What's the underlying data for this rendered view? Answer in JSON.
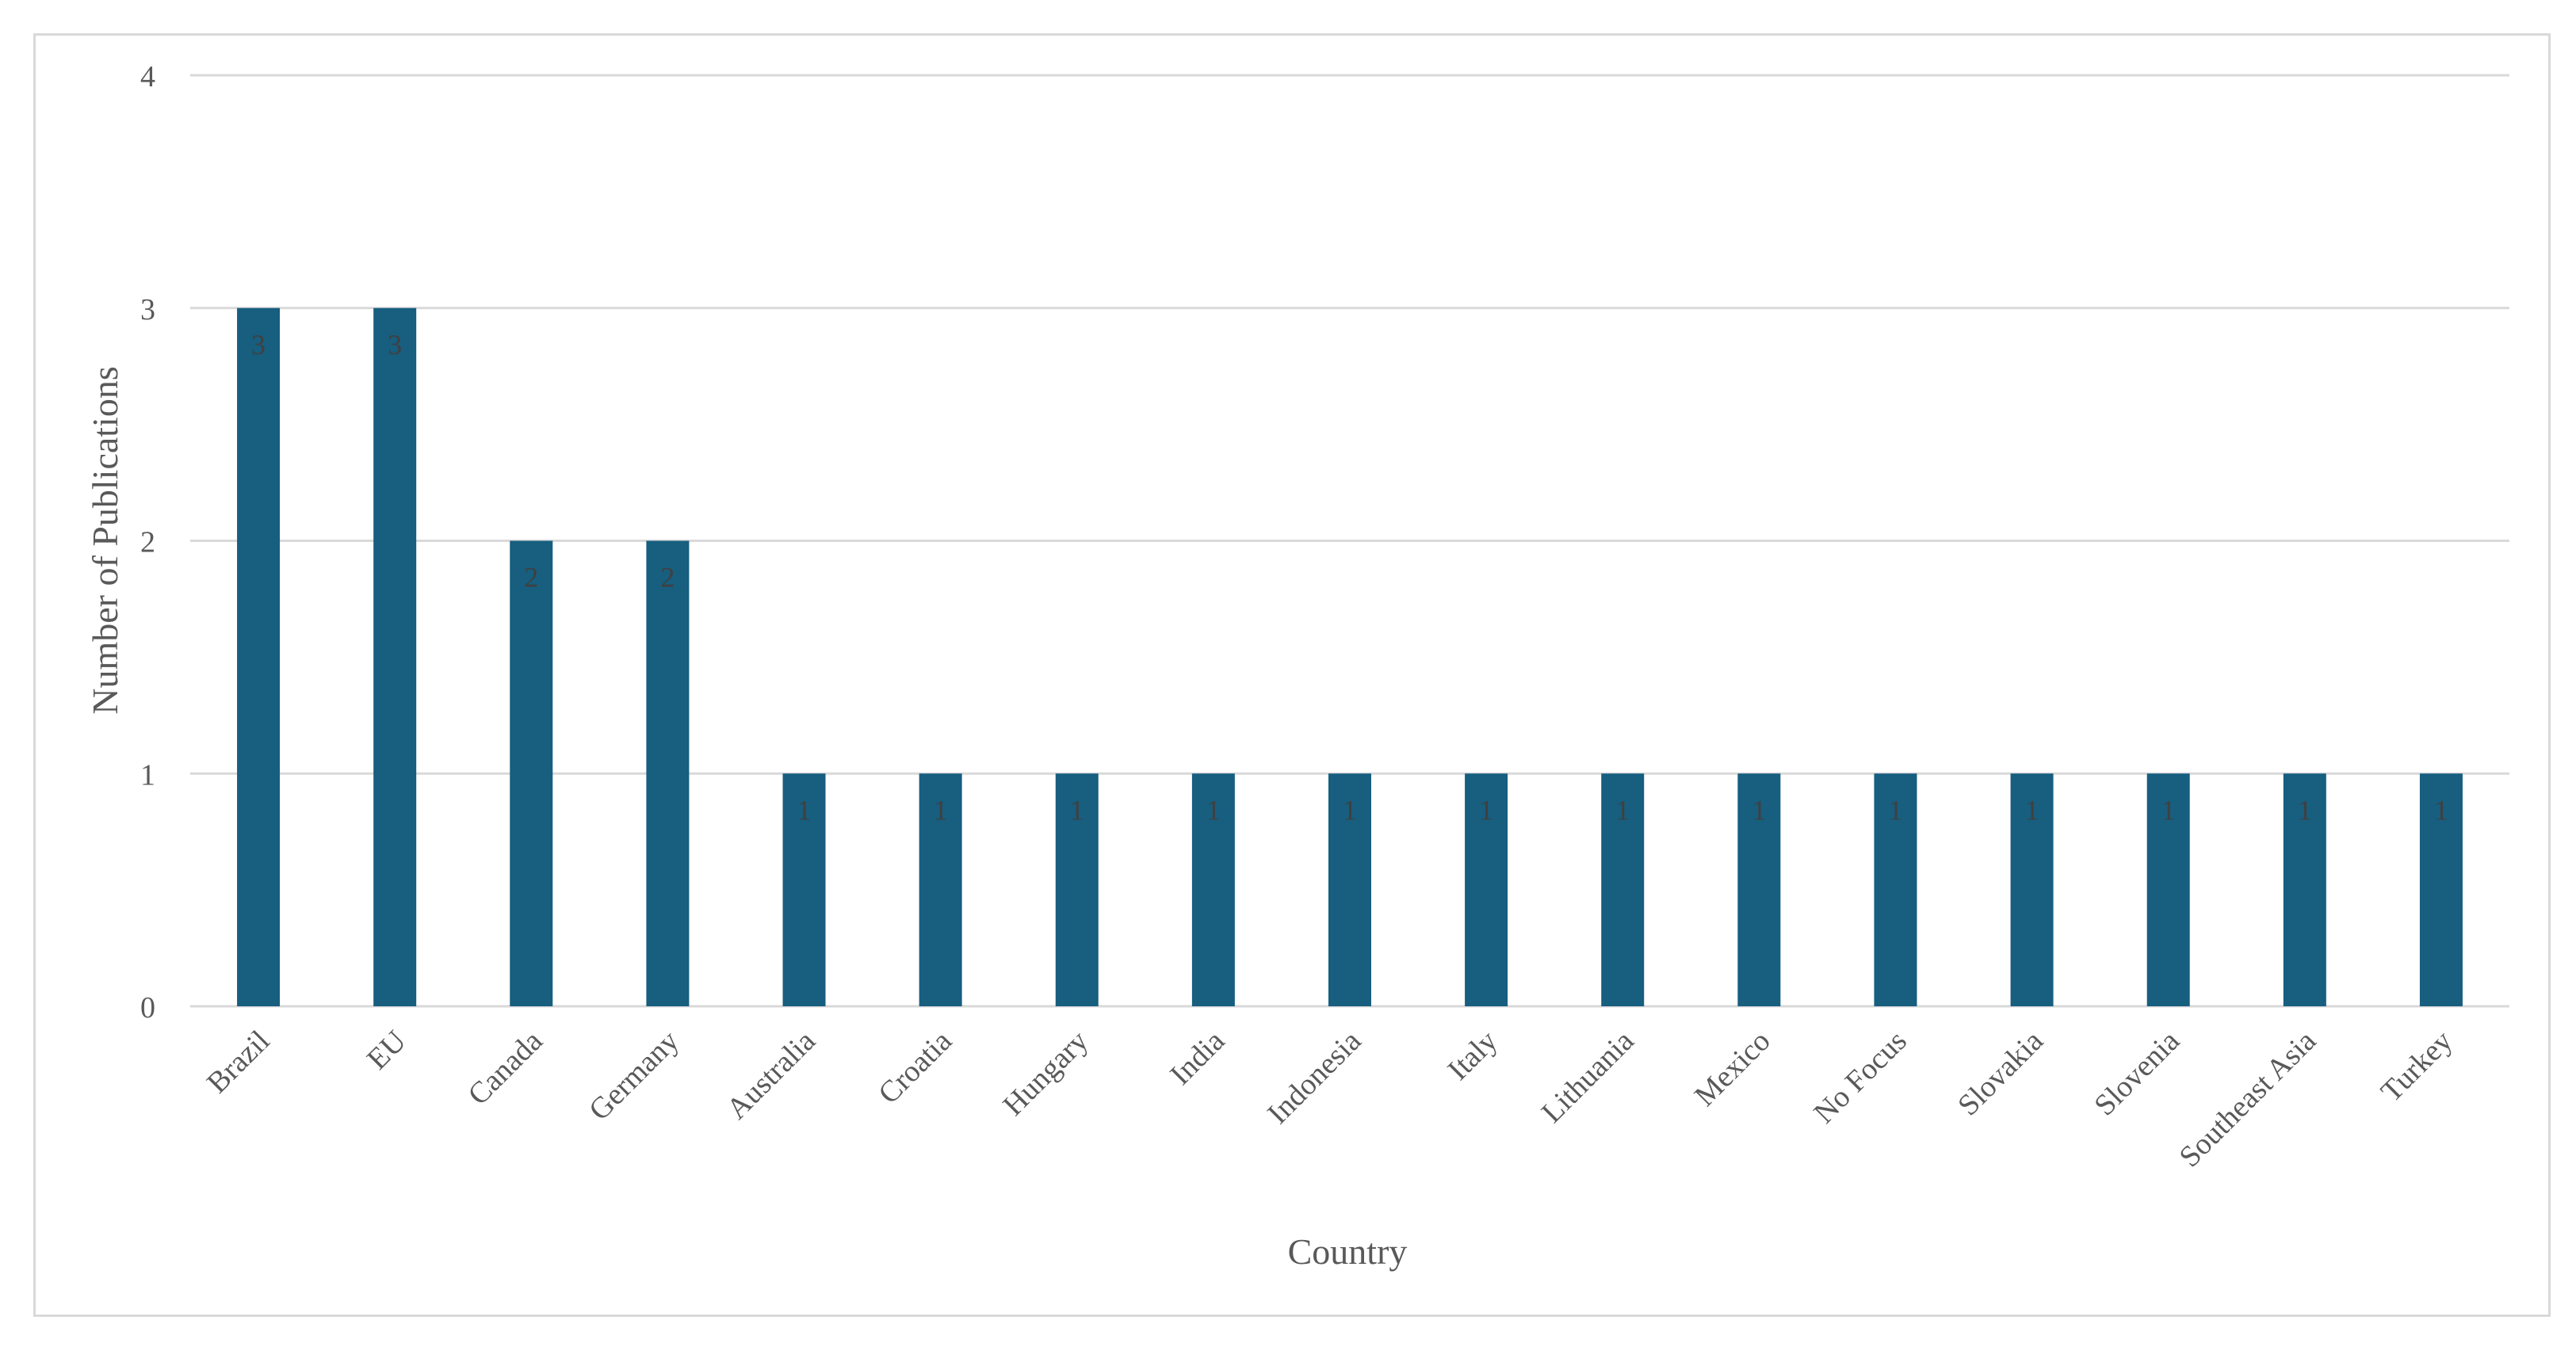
{
  "colors": {
    "bar": "#175E7F",
    "grid": "#d9d9d9",
    "text": "#595959",
    "data_label": "#404040",
    "frame": "#d9d9d9"
  },
  "chart_data": {
    "type": "bar",
    "categories": [
      "Brazil",
      "EU",
      "Canada",
      "Germany",
      "Australia",
      "Croatia",
      "Hungary",
      "India",
      "Indonesia",
      "Italy",
      "Lithuania",
      "Mexico",
      "No Focus",
      "Slovakia",
      "Slovenia",
      "Southeast Asia",
      "Turkey"
    ],
    "values": [
      3,
      3,
      2,
      2,
      1,
      1,
      1,
      1,
      1,
      1,
      1,
      1,
      1,
      1,
      1,
      1,
      1
    ],
    "title": "",
    "xlabel": "Country",
    "ylabel": "Number of Publications",
    "ylim": [
      0,
      4
    ],
    "yticks": [
      "0",
      "1",
      "2",
      "3",
      "4"
    ],
    "grid": true,
    "legend": "none",
    "data_labels": true
  }
}
